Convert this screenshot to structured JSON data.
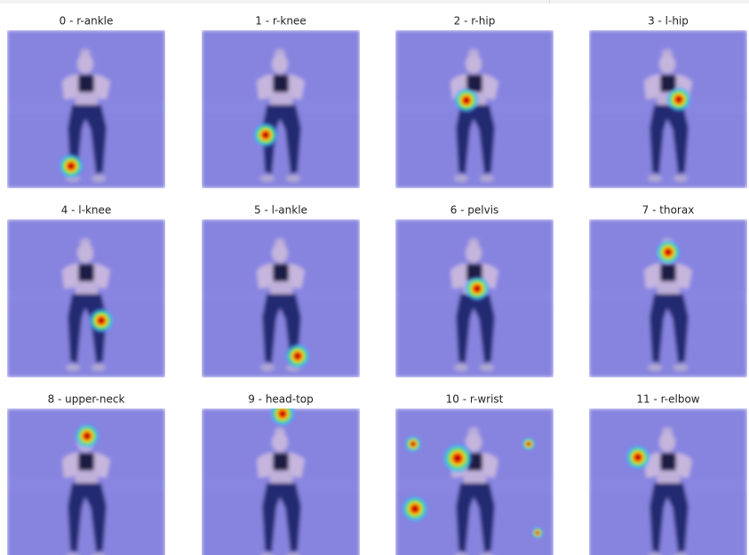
{
  "panels": [
    "0 - r-ankle",
    "1 - r-knee",
    "2 - r-hip",
    "3 - l-hip",
    "4 - l-knee",
    "5 - l-ankle",
    "6 - pelvis",
    "7 - thorax",
    "8 - upper-neck",
    "9 - head-top",
    "10 - r-wrist",
    "11 - r-elbow"
  ]
}
